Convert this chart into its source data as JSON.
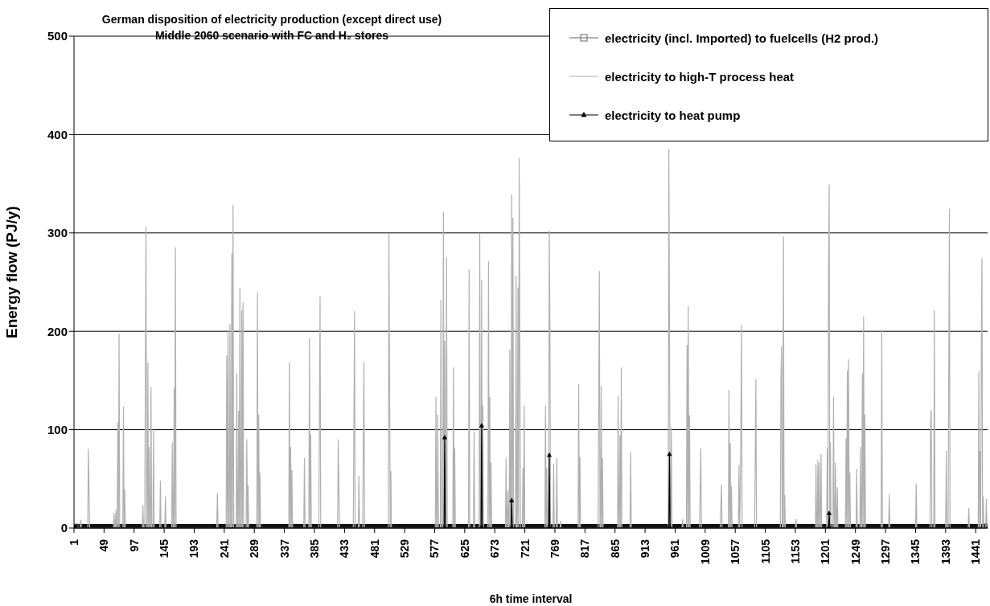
{
  "chart_data": {
    "type": "line",
    "title": "German disposition of electricity production (except direct use) Middle 2060 scenario with FC and H₂ stores",
    "xlabel": "6h time interval",
    "ylabel": "Energy flow (PJ/y)",
    "xlim": [
      1,
      1460
    ],
    "xticks": [
      1,
      49,
      97,
      145,
      193,
      241,
      289,
      337,
      385,
      433,
      481,
      529,
      577,
      625,
      673,
      721,
      769,
      817,
      865,
      913,
      961,
      1009,
      1057,
      1105,
      1153,
      1201,
      1249,
      1297,
      1345,
      1393,
      1441
    ],
    "ylim": [
      0,
      500
    ],
    "yticks": [
      0,
      100,
      200,
      300,
      400,
      500
    ],
    "grid": "y",
    "legend": "top right",
    "series": [
      {
        "name": "electricity (incl. Imported) to fuelcells (H2 prod.)",
        "color": "#111111",
        "marker": "square",
        "x": [
          1,
          1460
        ],
        "values": [
          0,
          0
        ]
      },
      {
        "name": "electricity to high-T process heat",
        "color": "#b0b0b0",
        "marker": "none",
        "x": [
          1,
          11,
          12,
          13,
          23,
          24,
          25,
          26,
          64,
          65,
          66,
          67,
          68,
          69,
          70,
          71,
          72,
          73,
          74,
          79,
          80,
          81,
          82,
          83,
          110,
          111,
          112,
          114,
          115,
          116,
          117,
          118,
          119,
          120,
          121,
          122,
          123,
          124,
          125,
          127,
          128,
          129,
          138,
          139,
          140,
          146,
          147,
          148,
          157,
          158,
          159,
          160,
          161,
          162,
          163,
          164,
          229,
          230,
          231,
          244,
          245,
          246,
          247,
          248,
          249,
          250,
          251,
          252,
          253,
          254,
          255,
          256,
          260,
          261,
          262,
          263,
          264,
          265,
          266,
          267,
          268,
          269,
          270,
          271,
          272,
          276,
          277,
          278,
          279,
          280,
          293,
          294,
          295,
          296,
          297,
          298,
          299,
          344,
          345,
          346,
          347,
          348,
          349,
          350,
          368,
          369,
          370,
          376,
          377,
          378,
          379,
          380,
          392,
          393,
          394,
          395,
          422,
          423,
          424,
          425,
          447,
          448,
          449,
          450,
          455,
          456,
          457,
          462,
          463,
          464,
          465,
          503,
          504,
          505,
          506,
          507,
          508,
          578,
          579,
          580,
          581,
          582,
          583,
          586,
          587,
          588,
          590,
          591,
          592,
          593,
          594,
          595,
          596,
          597,
          606,
          607,
          608,
          609,
          610,
          631,
          632,
          633,
          639,
          640,
          641,
          648,
          649,
          650,
          651,
          652,
          653,
          654,
          655,
          662,
          663,
          664,
          665,
          666,
          667,
          668,
          690,
          691,
          692,
          693,
          694,
          695,
          696,
          697,
          698,
          699,
          700,
          701,
          702,
          703,
          706,
          707,
          708,
          709,
          710,
          711,
          712,
          713,
          714,
          717,
          718,
          719,
          720,
          721,
          753,
          754,
          755,
          756,
          757,
          759,
          760,
          761,
          762,
          766,
          767,
          768,
          771,
          772,
          773,
          777,
          778,
          779,
          806,
          807,
          808,
          809,
          810,
          838,
          839,
          840,
          841,
          842,
          843,
          844,
          845,
          846,
          869,
          870,
          871,
          872,
          873,
          874,
          875,
          876,
          889,
          890,
          891,
          950,
          951,
          952,
          953,
          954,
          955,
          956,
          972,
          973,
          974,
          979,
          980,
          981,
          982,
          983,
          984,
          985,
          1000,
          1001,
          1002,
          1003,
          1033,
          1034,
          1035,
          1036,
          1046,
          1047,
          1048,
          1049,
          1050,
          1051,
          1052,
          1062,
          1063,
          1064,
          1065,
          1066,
          1067,
          1068,
          1088,
          1089,
          1090,
          1091,
          1129,
          1130,
          1131,
          1132,
          1133,
          1134,
          1135,
          1136,
          1137,
          1153,
          1154,
          1155,
          1185,
          1186,
          1187,
          1188,
          1189,
          1190,
          1191,
          1192,
          1193,
          1194,
          1195,
          1203,
          1204,
          1205,
          1206,
          1207,
          1208,
          1209,
          1210,
          1213,
          1214,
          1215,
          1216,
          1217,
          1218,
          1219,
          1220,
          1221,
          1233,
          1234,
          1235,
          1236,
          1237,
          1238,
          1239,
          1240,
          1241,
          1250,
          1251,
          1252,
          1256,
          1257,
          1258,
          1259,
          1260,
          1261,
          1262,
          1263,
          1264,
          1265,
          1290,
          1291,
          1292,
          1302,
          1303,
          1304,
          1345,
          1346,
          1347,
          1368,
          1369,
          1370,
          1371,
          1374,
          1375,
          1376,
          1393,
          1394,
          1395,
          1397,
          1398,
          1399,
          1400,
          1429,
          1430,
          1431,
          1445,
          1446,
          1447,
          1448,
          1449,
          1450,
          1451,
          1452,
          1453,
          1454,
          1457,
          1458,
          1459,
          1460
        ],
        "values": [
          0,
          0,
          8,
          0,
          0,
          80,
          39,
          0,
          0,
          15,
          0,
          0,
          18,
          0,
          0,
          107,
          0,
          197,
          0,
          0,
          123,
          0,
          39,
          0,
          0,
          23,
          0,
          0,
          157,
          306,
          0,
          0,
          168,
          0,
          82,
          0,
          0,
          143,
          0,
          0,
          100,
          0,
          0,
          48,
          0,
          0,
          32,
          0,
          0,
          87,
          0,
          0,
          142,
          0,
          285,
          0,
          0,
          35,
          0,
          0,
          175,
          0,
          201,
          0,
          0,
          207,
          0,
          0,
          279,
          0,
          328,
          0,
          0,
          157,
          0,
          0,
          119,
          0,
          244,
          0,
          0,
          221,
          0,
          229,
          0,
          0,
          90,
          0,
          43,
          0,
          0,
          239,
          0,
          115,
          0,
          56,
          0,
          0,
          168,
          0,
          82,
          0,
          59,
          0,
          0,
          71,
          0,
          0,
          193,
          0,
          95,
          0,
          0,
          117,
          235,
          0,
          0,
          90,
          43,
          0,
          0,
          109,
          220,
          0,
          0,
          53,
          0,
          0,
          84,
          168,
          0,
          0,
          299,
          148,
          0,
          58,
          0,
          0,
          133,
          0,
          0,
          115,
          0,
          0,
          232,
          0,
          0,
          321,
          0,
          190,
          0,
          0,
          275,
          0,
          0,
          163,
          0,
          81,
          0,
          0,
          262,
          0,
          0,
          98,
          0,
          0,
          299,
          0,
          0,
          252,
          0,
          124,
          0,
          0,
          271,
          0,
          133,
          0,
          66,
          0,
          0,
          71,
          0,
          0,
          38,
          0,
          0,
          181,
          0,
          0,
          339,
          0,
          315,
          0,
          0,
          256,
          0,
          0,
          244,
          0,
          376,
          189,
          0,
          0,
          61,
          0,
          124,
          0,
          0,
          124,
          0,
          61,
          0,
          0,
          302,
          207,
          0,
          0,
          65,
          0,
          0,
          71,
          0,
          0,
          7,
          0,
          0,
          146,
          0,
          72,
          0,
          0,
          130,
          261,
          0,
          0,
          144,
          0,
          71,
          0,
          0,
          134,
          0,
          0,
          94,
          0,
          163,
          0,
          0,
          77,
          0,
          0,
          385,
          199,
          0,
          0,
          102,
          0,
          0,
          9,
          0,
          0,
          186,
          0,
          225,
          0,
          114,
          0,
          0,
          39,
          81,
          0,
          0,
          20,
          44,
          0,
          0,
          140,
          0,
          86,
          0,
          42,
          0,
          0,
          64,
          0,
          30,
          102,
          206,
          0,
          0,
          75,
          151,
          0,
          0,
          154,
          185,
          0,
          0,
          296,
          0,
          33,
          0,
          0,
          9,
          0,
          0,
          64,
          0,
          0,
          69,
          0,
          66,
          0,
          0,
          75,
          0,
          0,
          81,
          0,
          257,
          349,
          0,
          87,
          0,
          0,
          133,
          0,
          0,
          66,
          0,
          0,
          41,
          0,
          0,
          91,
          0,
          160,
          0,
          171,
          0,
          56,
          0,
          0,
          60,
          0,
          0,
          82,
          0,
          0,
          157,
          0,
          215,
          0,
          115,
          0,
          0,
          201,
          0,
          0,
          34,
          0,
          0,
          45,
          0,
          0,
          109,
          120,
          0,
          0,
          221,
          0,
          0,
          78,
          0,
          0,
          161,
          324,
          0,
          0,
          20,
          0,
          0,
          159,
          0,
          78,
          0,
          185,
          274,
          0,
          32,
          0,
          0,
          29,
          0,
          0
        ]
      },
      {
        "name": "electricity to heat pump",
        "color": "#000000",
        "marker": "triangle",
        "x": [
          1,
          592,
          593,
          594,
          651,
          652,
          653,
          699,
          700,
          701,
          759,
          760,
          761,
          951,
          952,
          953,
          1206,
          1207,
          1208,
          1460
        ],
        "values": [
          0,
          0,
          92,
          0,
          0,
          104,
          0,
          0,
          28,
          0,
          0,
          74,
          0,
          0,
          75,
          0,
          0,
          15,
          0,
          0
        ]
      }
    ]
  }
}
